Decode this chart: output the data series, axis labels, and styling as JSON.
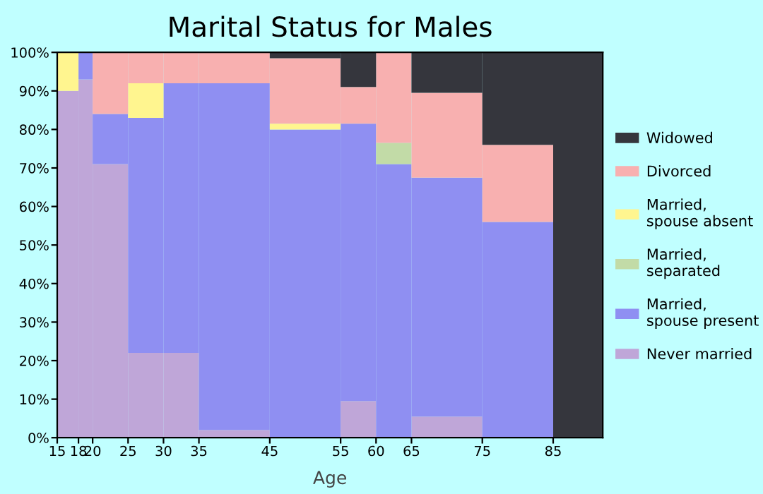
{
  "chart_data": {
    "type": "bar",
    "stacked": true,
    "title": "Marital Status for Males",
    "xlabel": "Age",
    "x": [
      16.5,
      19,
      22.5,
      27.5,
      32.5,
      40,
      50,
      57.5,
      62.5,
      70,
      80,
      88.5
    ],
    "xlim": [
      15,
      92
    ],
    "xticks": [
      15,
      18,
      20,
      25,
      30,
      35,
      45,
      55,
      60,
      65,
      75,
      85
    ],
    "ylim": [
      0,
      100
    ],
    "yticks": [
      {
        "value": 0,
        "label": "0%"
      },
      {
        "value": 10,
        "label": "10%"
      },
      {
        "value": 20,
        "label": "20%"
      },
      {
        "value": 30,
        "label": "30%"
      },
      {
        "value": 40,
        "label": "40%"
      },
      {
        "value": 50,
        "label": "50%"
      },
      {
        "value": 60,
        "label": "60%"
      },
      {
        "value": 70,
        "label": "70%"
      },
      {
        "value": 80,
        "label": "80%"
      },
      {
        "value": 90,
        "label": "90%"
      },
      {
        "value": 100,
        "label": "100%"
      }
    ],
    "grid": false,
    "legend": "right",
    "series": [
      {
        "name": "Never married",
        "color": "#bfa6d8",
        "values": [
          90,
          93,
          71,
          22,
          22,
          2,
          0,
          9.5,
          0,
          5.5,
          0,
          0
        ]
      },
      {
        "name": "Married, spouse present",
        "color": "#8f8ff2",
        "values": [
          0,
          7,
          13,
          61,
          70,
          90,
          80,
          72,
          71,
          62,
          56,
          0
        ]
      },
      {
        "name": "Married, separated",
        "color": "#c2dba7",
        "values": [
          0,
          0,
          0,
          0,
          0,
          0,
          0,
          0,
          5.5,
          0,
          0,
          0
        ]
      },
      {
        "name": "Married, spouse absent",
        "color": "#fff58f",
        "values": [
          10,
          0,
          0,
          9,
          0,
          0,
          1.5,
          0,
          0,
          0,
          0,
          0
        ]
      },
      {
        "name": "Divorced",
        "color": "#f8b0b0",
        "values": [
          0,
          0,
          16,
          8,
          8,
          8,
          17,
          9.5,
          23.5,
          22,
          20,
          0
        ]
      },
      {
        "name": "Widowed",
        "color": "#35363d",
        "values": [
          0,
          0,
          0,
          0,
          0,
          0,
          1.5,
          9,
          0,
          10.5,
          24,
          100
        ]
      }
    ]
  }
}
